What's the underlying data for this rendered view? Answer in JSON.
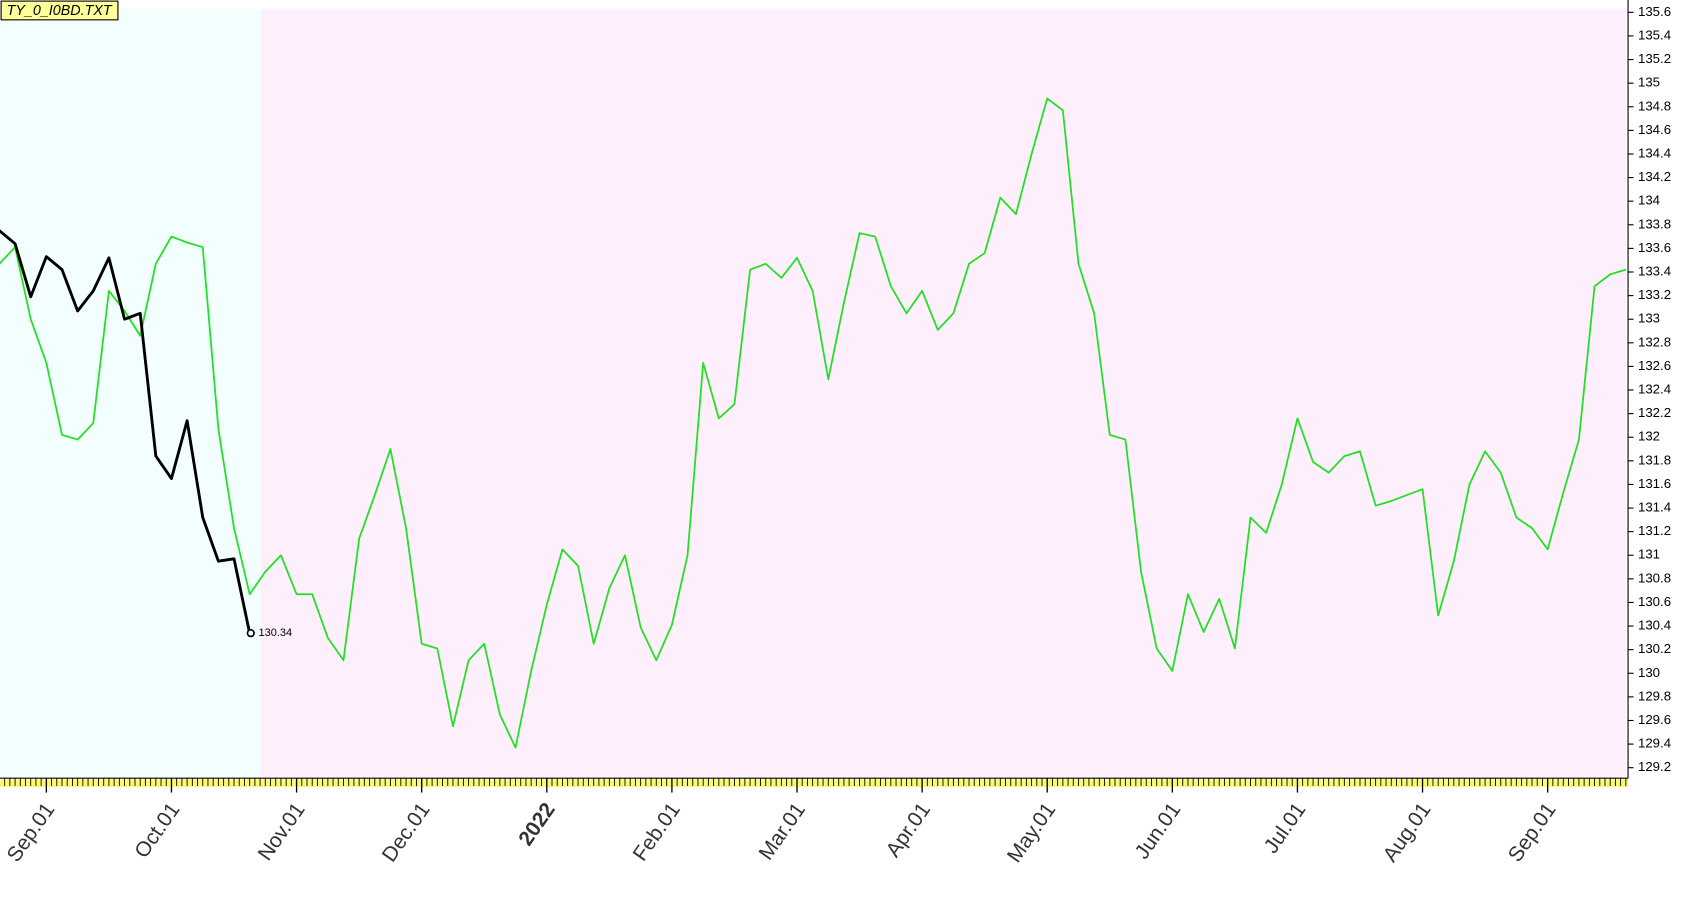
{
  "chart_data": {
    "type": "line",
    "title": "TY_0_I0BD.TXT",
    "categories": [
      null,
      null,
      null,
      "Sep.01",
      null,
      null,
      null,
      null,
      null,
      null,
      null,
      "Oct.01",
      null,
      null,
      null,
      null,
      null,
      null,
      null,
      "Nov.01",
      null,
      null,
      null,
      null,
      null,
      null,
      null,
      "Dec.01",
      null,
      null,
      null,
      null,
      null,
      null,
      null,
      "2022",
      null,
      null,
      null,
      null,
      null,
      null,
      null,
      "Feb.01",
      null,
      null,
      null,
      null,
      null,
      null,
      null,
      "Mar.01",
      null,
      null,
      null,
      null,
      null,
      null,
      null,
      "Apr.01",
      null,
      null,
      null,
      null,
      null,
      null,
      null,
      "May.01",
      null,
      null,
      null,
      null,
      null,
      null,
      null,
      "Jun.01",
      null,
      null,
      null,
      null,
      null,
      null,
      null,
      "Jul.01",
      null,
      null,
      null,
      null,
      null,
      null,
      null,
      "Aug.01",
      null,
      null,
      null,
      null,
      null,
      null,
      null,
      "Sep.01",
      null,
      null,
      null,
      null,
      null
    ],
    "series": [
      {
        "color": "#22e022",
        "values": [
          133.47,
          133.61,
          133.0,
          132.63,
          132.02,
          131.98,
          132.12,
          133.24,
          133.07,
          132.86,
          133.47,
          133.7,
          133.65,
          133.61,
          132.07,
          131.23,
          130.67,
          130.86,
          131.0,
          130.67,
          130.67,
          130.3,
          130.11,
          131.14,
          131.51,
          131.9,
          131.23,
          130.25,
          130.21,
          129.55,
          130.11,
          130.25,
          129.65,
          129.37,
          130.02,
          130.58,
          131.05,
          130.91,
          130.25,
          130.72,
          131.0,
          130.39,
          130.11,
          130.41,
          131.0,
          132.63,
          132.16,
          132.28,
          133.42,
          133.47,
          133.35,
          133.52,
          133.24,
          132.49,
          133.14,
          133.73,
          133.7,
          133.28,
          133.05,
          133.24,
          132.91,
          133.05,
          133.47,
          133.56,
          134.03,
          133.89,
          134.4,
          134.87,
          134.77,
          133.47,
          133.05,
          132.02,
          131.98,
          130.86,
          130.21,
          130.02,
          130.67,
          130.35,
          130.63,
          130.21,
          131.32,
          131.19,
          131.6,
          132.16,
          131.79,
          131.7,
          131.84,
          131.88,
          131.42,
          131.46,
          131.51,
          131.56,
          130.49,
          130.95,
          131.6,
          131.88,
          131.7,
          131.32,
          131.23,
          131.05,
          131.53,
          131.98,
          133.28,
          133.38,
          133.42
        ]
      },
      {
        "color": "#000000",
        "values": [
          133.75,
          133.64,
          133.19,
          133.53,
          133.42,
          133.07,
          133.24,
          133.52,
          133.0,
          133.05,
          131.84,
          131.65,
          132.14,
          131.32,
          130.95,
          130.97,
          130.34,
          null,
          null,
          null,
          null,
          null,
          null,
          null,
          null,
          null,
          null,
          null,
          null,
          null,
          null,
          null,
          null,
          null,
          null,
          null,
          null,
          null,
          null,
          null,
          null,
          null,
          null,
          null,
          null,
          null,
          null,
          null,
          null,
          null,
          null,
          null,
          null,
          null,
          null,
          null,
          null,
          null,
          null,
          null,
          null,
          null,
          null,
          null,
          null,
          null,
          null,
          null,
          null,
          null,
          null,
          null,
          null,
          null,
          null,
          null,
          null,
          null,
          null,
          null,
          null,
          null,
          null,
          null,
          null,
          null,
          null,
          null,
          null,
          null,
          null,
          null,
          null,
          null,
          null,
          null,
          null,
          null,
          null,
          null,
          null,
          null,
          null,
          null,
          null
        ]
      }
    ],
    "ylim": [
      129.12,
      135.63
    ],
    "yticks": [
      129.2,
      129.4,
      129.6,
      129.8,
      130,
      130.2,
      130.4,
      130.6,
      130.8,
      131,
      131.2,
      131.4,
      131.6,
      131.8,
      132,
      132.2,
      132.4,
      132.6,
      132.8,
      133,
      133.2,
      133.4,
      133.6,
      133.8,
      134,
      134.2,
      134.4,
      134.6,
      134.8,
      135,
      135.2,
      135.4,
      135.6
    ],
    "year_label_color": "#800000",
    "background_colors": [
      "#f2fffe",
      "#fdf0fc"
    ],
    "title_background": "#ffff99"
  }
}
